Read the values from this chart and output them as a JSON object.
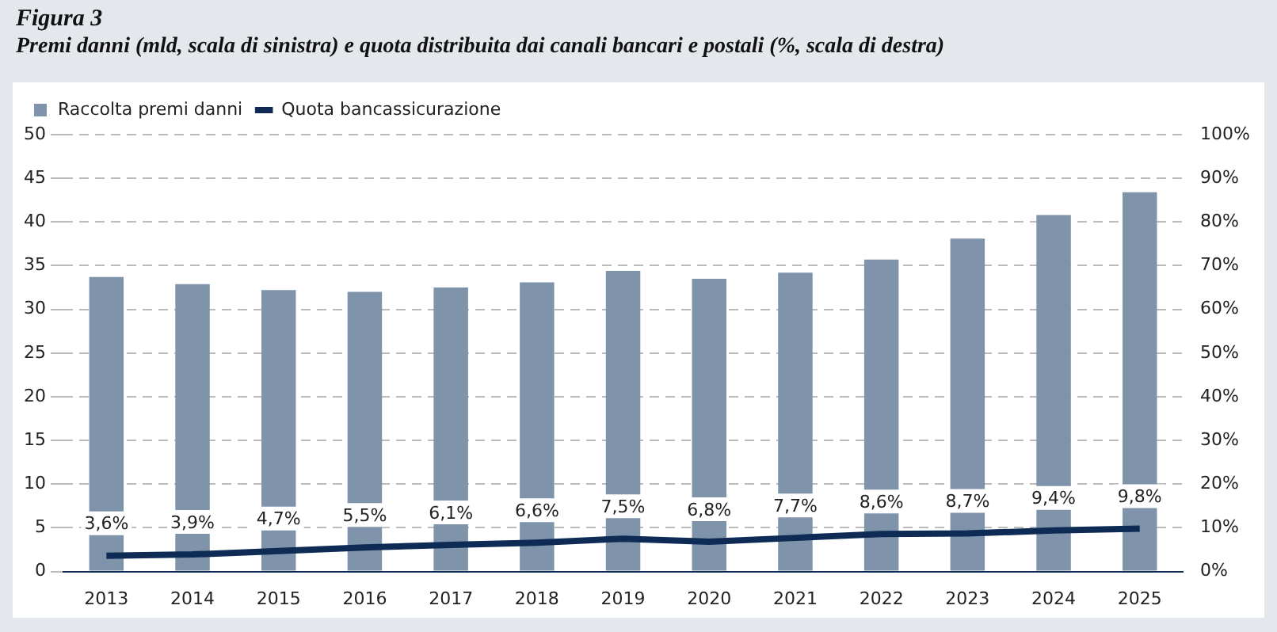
{
  "chart_data": {
    "type": "bar",
    "title": "Figura 3",
    "subtitle": "Premi danni (mld, scala di sinistra) e quota distribuita dai canali bancari e postali (%, scala di destra)",
    "categories": [
      "2013",
      "2014",
      "2015",
      "2016",
      "2017",
      "2018",
      "2019",
      "2020",
      "2021",
      "2022",
      "2023",
      "2024",
      "2025"
    ],
    "series": [
      {
        "name": "Raccolta premi danni",
        "color": "#7f93ab",
        "values": [
          33.7,
          32.9,
          32.2,
          32.0,
          32.5,
          33.1,
          34.4,
          33.5,
          34.2,
          35.7,
          38.1,
          40.8,
          43.4
        ]
      },
      {
        "name": "Quota bancassicurazione",
        "type": "line",
        "axis": "y2",
        "color": "#0d2b54",
        "values": [
          3.6,
          3.9,
          4.7,
          5.5,
          6.1,
          6.6,
          7.5,
          6.8,
          7.7,
          8.6,
          8.7,
          9.4,
          9.8
        ],
        "value_labels": [
          "3,6%",
          "3,9%",
          "4,7%",
          "5,5%",
          "6,1%",
          "6,6%",
          "7,5%",
          "6,8%",
          "7,7%",
          "8,6%",
          "8,7%",
          "9,4%",
          "9,8%"
        ]
      }
    ],
    "ylim": [
      0,
      50
    ],
    "yticks": [
      0,
      5,
      10,
      15,
      20,
      25,
      30,
      35,
      40,
      45,
      50
    ],
    "y2lim": [
      0,
      100
    ],
    "y2ticks": [
      {
        "value": 0,
        "label": "0%"
      },
      {
        "value": 10,
        "label": "10%"
      },
      {
        "value": 20,
        "label": "20%"
      },
      {
        "value": 30,
        "label": "30%"
      },
      {
        "value": 40,
        "label": "40%"
      },
      {
        "value": 50,
        "label": "50%"
      },
      {
        "value": 60,
        "label": "60%"
      },
      {
        "value": 70,
        "label": "70%"
      },
      {
        "value": 80,
        "label": "80%"
      },
      {
        "value": 90,
        "label": "90%"
      },
      {
        "value": 100,
        "label": "100%"
      }
    ],
    "grid": "y",
    "legend": "top left",
    "marker": "none",
    "line_style": "solid"
  }
}
